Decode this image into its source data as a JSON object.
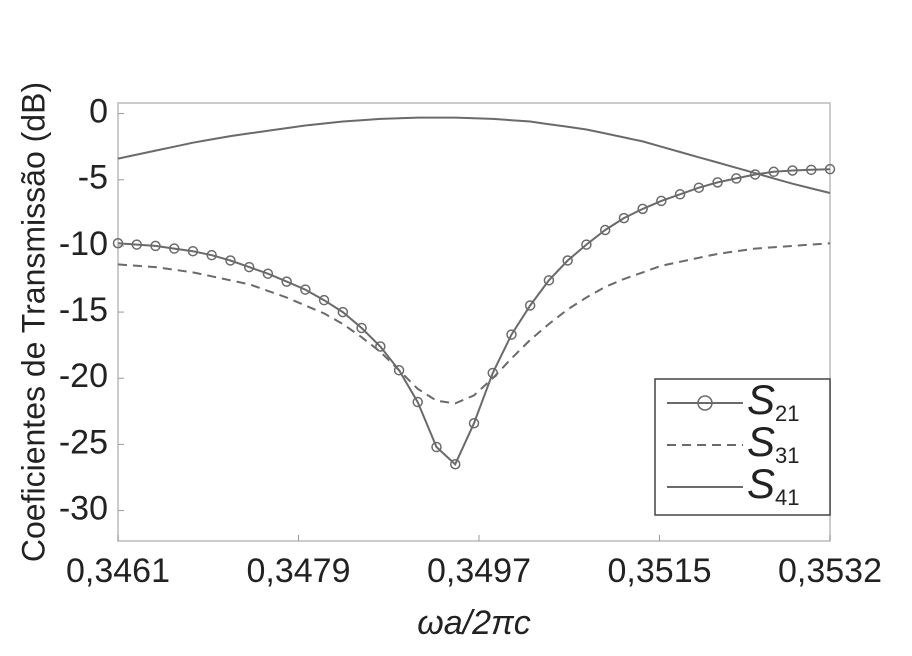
{
  "chart_data": {
    "type": "line",
    "xlabel": "ωa/2πc",
    "ylabel": "Coeficientes de Transmissão (dB)",
    "x": [
      0.3461,
      0.346287,
      0.346474,
      0.346661,
      0.346847,
      0.347034,
      0.347221,
      0.347408,
      0.347595,
      0.347782,
      0.347968,
      0.348155,
      0.348342,
      0.348529,
      0.348716,
      0.348903,
      0.349089,
      0.349276,
      0.349463,
      0.34965,
      0.349837,
      0.350024,
      0.35021,
      0.350397,
      0.350584,
      0.350771,
      0.350958,
      0.351145,
      0.351332,
      0.351518,
      0.351705,
      0.351892,
      0.352079,
      0.352266,
      0.352453,
      0.352639,
      0.352826,
      0.353013,
      0.3532
    ],
    "series": [
      {
        "name": "S21",
        "color": "#6a6a6a",
        "marker": "circle",
        "dash": false,
        "values": [
          -9.8,
          -9.9,
          -10.0,
          -10.2,
          -10.4,
          -10.7,
          -11.1,
          -11.6,
          -12.1,
          -12.7,
          -13.3,
          -14.1,
          -15.0,
          -16.2,
          -17.6,
          -19.4,
          -21.8,
          -25.2,
          -26.5,
          -23.4,
          -19.6,
          -16.7,
          -14.5,
          -12.6,
          -11.1,
          -9.9,
          -8.8,
          -7.9,
          -7.2,
          -6.6,
          -6.1,
          -5.6,
          -5.2,
          -4.9,
          -4.6,
          -4.4,
          -4.3,
          -4.25,
          -4.2
        ]
      },
      {
        "name": "S31",
        "color": "#6a6a6a",
        "marker": "none",
        "dash": true,
        "values": [
          -11.4,
          -11.5,
          -11.6,
          -11.8,
          -12.0,
          -12.3,
          -12.6,
          -12.9,
          -13.4,
          -13.9,
          -14.5,
          -15.1,
          -15.9,
          -16.9,
          -18.0,
          -19.4,
          -20.8,
          -21.7,
          -21.9,
          -21.3,
          -20.0,
          -18.5,
          -17.1,
          -15.9,
          -14.8,
          -13.9,
          -13.1,
          -12.5,
          -12.0,
          -11.5,
          -11.2,
          -10.9,
          -10.6,
          -10.4,
          -10.2,
          -10.1,
          -10.0,
          -9.9,
          -9.8
        ]
      },
      {
        "name": "S41",
        "color": "#6a6a6a",
        "marker": "none",
        "dash": false,
        "values": [
          -3.4,
          -3.1,
          -2.8,
          -2.5,
          -2.2,
          -1.95,
          -1.7,
          -1.5,
          -1.3,
          -1.1,
          -0.9,
          -0.75,
          -0.6,
          -0.5,
          -0.4,
          -0.35,
          -0.3,
          -0.3,
          -0.3,
          -0.35,
          -0.4,
          -0.5,
          -0.6,
          -0.8,
          -1.0,
          -1.2,
          -1.5,
          -1.8,
          -2.1,
          -2.5,
          -2.9,
          -3.3,
          -3.7,
          -4.1,
          -4.5,
          -4.9,
          -5.3,
          -5.65,
          -6.0
        ]
      }
    ],
    "xlim": [
      0.3461,
      0.3532
    ],
    "xticks": [
      {
        "value": 0.3461,
        "label": "0,3461"
      },
      {
        "value": 0.3479,
        "label": "0,3479"
      },
      {
        "value": 0.3497,
        "label": "0,3497"
      },
      {
        "value": 0.3515,
        "label": "0,3515"
      },
      {
        "value": 0.3532,
        "label": "0,3532"
      }
    ],
    "ylim": [
      -32.3,
      0.8
    ],
    "yticks": [
      0,
      -5,
      -10,
      -15,
      -20,
      -25,
      -30
    ],
    "grid": false,
    "legend": "lower right"
  }
}
